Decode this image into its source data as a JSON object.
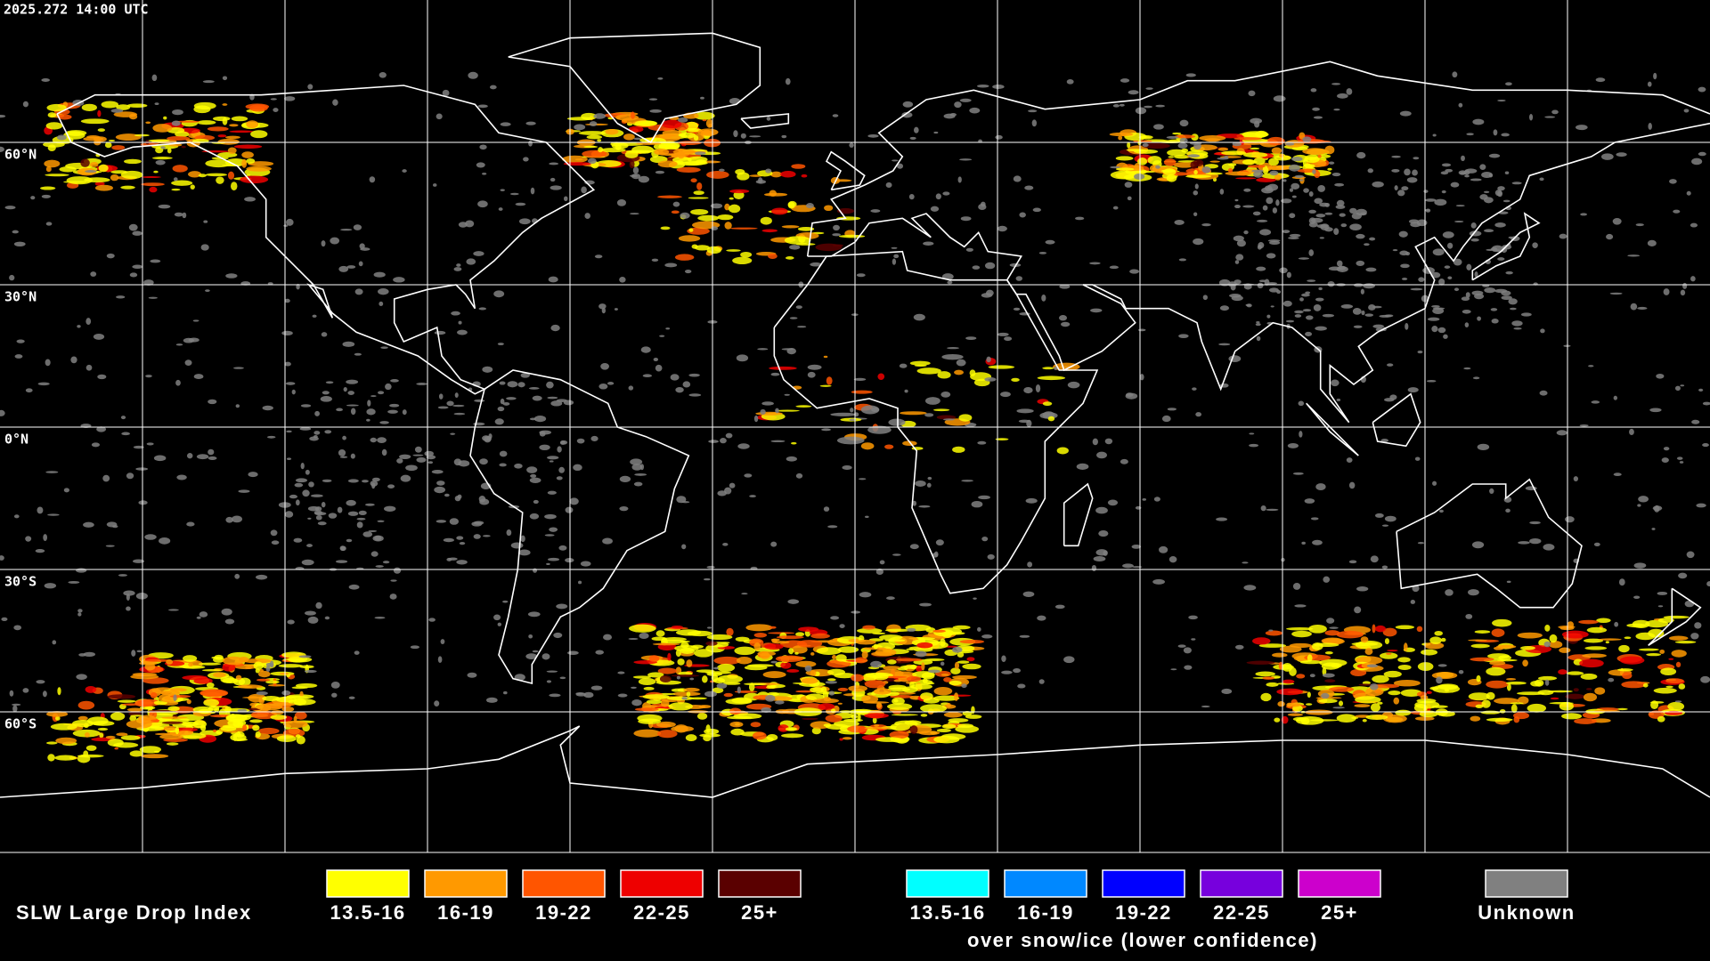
{
  "header": {
    "timestamp": "2025.272 14:00 UTC"
  },
  "map": {
    "lat_labels": [
      "60°N",
      "30°N",
      "0°N",
      "30°S",
      "60°S"
    ]
  },
  "legend": {
    "title": "SLW Large Drop Index",
    "items": [
      {
        "label": "13.5-16",
        "color": "#ffff00"
      },
      {
        "label": "16-19",
        "color": "#ff9900"
      },
      {
        "label": "19-22",
        "color": "#ff5500"
      },
      {
        "label": "22-25",
        "color": "#ee0000"
      },
      {
        "label": "25+",
        "color": "#5a0000"
      }
    ],
    "snow_items": [
      {
        "label": "13.5-16",
        "color": "#00ffff"
      },
      {
        "label": "16-19",
        "color": "#0088ff"
      },
      {
        "label": "19-22",
        "color": "#0000ff"
      },
      {
        "label": "22-25",
        "color": "#7700dd"
      },
      {
        "label": "25+",
        "color": "#cc00cc"
      }
    ],
    "snow_caption": "over snow/ice (lower confidence)",
    "unknown": {
      "label": "Unknown",
      "color": "#808080"
    }
  }
}
